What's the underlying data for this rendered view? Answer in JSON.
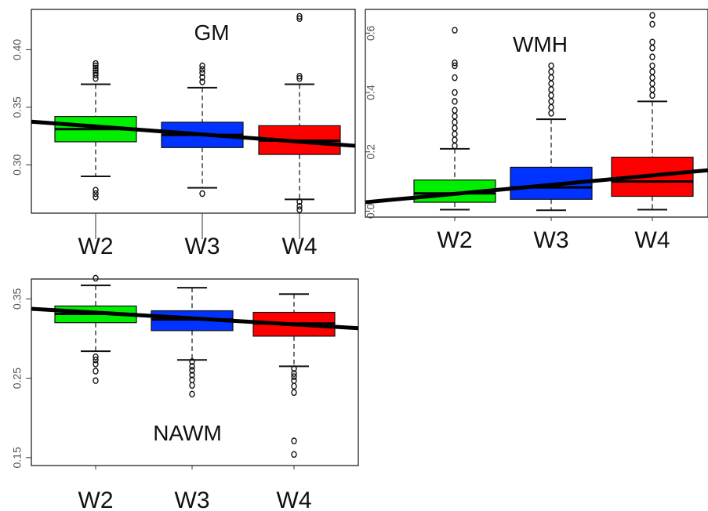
{
  "chart_data": [
    {
      "type": "box",
      "title": "GM",
      "categories": [
        "W2",
        "W3",
        "W4"
      ],
      "ylim": [
        0.258,
        0.435
      ],
      "yticks": [
        0.3,
        0.35,
        0.4
      ],
      "ytick_labels": [
        "0.30",
        "0.35",
        "0.40"
      ],
      "box_colors": [
        "#00ee00",
        "#0033ff",
        "#ff0000"
      ],
      "boxes": [
        {
          "whisker_low": 0.29,
          "q1": 0.32,
          "median": 0.331,
          "q3": 0.342,
          "whisker_high": 0.37,
          "outliers": [
            0.272,
            0.275,
            0.278,
            0.375,
            0.378,
            0.38,
            0.382,
            0.384,
            0.386,
            0.388
          ]
        },
        {
          "whisker_low": 0.28,
          "q1": 0.315,
          "median": 0.326,
          "q3": 0.337,
          "whisker_high": 0.367,
          "outliers": [
            0.275,
            0.372,
            0.376,
            0.38,
            0.383,
            0.386
          ]
        },
        {
          "whisker_low": 0.27,
          "q1": 0.309,
          "median": 0.321,
          "q3": 0.334,
          "whisker_high": 0.37,
          "outliers": [
            0.261,
            0.264,
            0.268,
            0.375,
            0.377,
            0.427,
            0.429
          ]
        }
      ],
      "trend_line": {
        "y_start": 0.3375,
        "y_end": 0.3165
      }
    },
    {
      "type": "box",
      "title": "WMH",
      "categories": [
        "W2",
        "W3",
        "W4"
      ],
      "ylim": [
        -0.02,
        0.68
      ],
      "yticks": [
        0.0,
        0.2,
        0.4,
        0.6
      ],
      "ytick_labels": [
        "0.0",
        "0.2",
        "0.4",
        "0.6"
      ],
      "box_colors": [
        "#00ee00",
        "#0033ff",
        "#ff0000"
      ],
      "boxes": [
        {
          "whisker_low": 0.005,
          "q1": 0.03,
          "median": 0.06,
          "q3": 0.105,
          "whisker_high": 0.21,
          "outliers": [
            0.22,
            0.24,
            0.26,
            0.28,
            0.3,
            0.32,
            0.34,
            0.37,
            0.4,
            0.45,
            0.49,
            0.5,
            0.61
          ]
        },
        {
          "whisker_low": 0.003,
          "q1": 0.04,
          "median": 0.08,
          "q3": 0.148,
          "whisker_high": 0.31,
          "outliers": [
            0.33,
            0.35,
            0.37,
            0.39,
            0.41,
            0.43,
            0.45,
            0.47,
            0.49
          ]
        },
        {
          "whisker_low": 0.005,
          "q1": 0.05,
          "median": 0.1,
          "q3": 0.182,
          "whisker_high": 0.37,
          "outliers": [
            0.39,
            0.41,
            0.43,
            0.45,
            0.47,
            0.49,
            0.52,
            0.55,
            0.57,
            0.63,
            0.66
          ]
        }
      ],
      "trend_line": {
        "y_start": 0.03,
        "y_end": 0.138
      }
    },
    {
      "type": "box",
      "title": "NAWM",
      "categories": [
        "W2",
        "W3",
        "W4"
      ],
      "ylim": [
        0.14,
        0.375
      ],
      "yticks": [
        0.15,
        0.25,
        0.35
      ],
      "ytick_labels": [
        "0.15",
        "0.25",
        "0.35"
      ],
      "box_colors": [
        "#00ee00",
        "#0033ff",
        "#ff0000"
      ],
      "boxes": [
        {
          "whisker_low": 0.284,
          "q1": 0.32,
          "median": 0.331,
          "q3": 0.341,
          "whisker_high": 0.367,
          "outliers": [
            0.247,
            0.259,
            0.268,
            0.273,
            0.277,
            0.376
          ]
        },
        {
          "whisker_low": 0.273,
          "q1": 0.31,
          "median": 0.324,
          "q3": 0.335,
          "whisker_high": 0.364,
          "outliers": [
            0.23,
            0.241,
            0.248,
            0.254,
            0.26,
            0.265,
            0.271
          ]
        },
        {
          "whisker_low": 0.265,
          "q1": 0.303,
          "median": 0.319,
          "q3": 0.333,
          "whisker_high": 0.356,
          "outliers": [
            0.154,
            0.171,
            0.232,
            0.24,
            0.247,
            0.252,
            0.256,
            0.262
          ]
        }
      ],
      "trend_line": {
        "y_start": 0.3375,
        "y_end": 0.313
      }
    }
  ]
}
